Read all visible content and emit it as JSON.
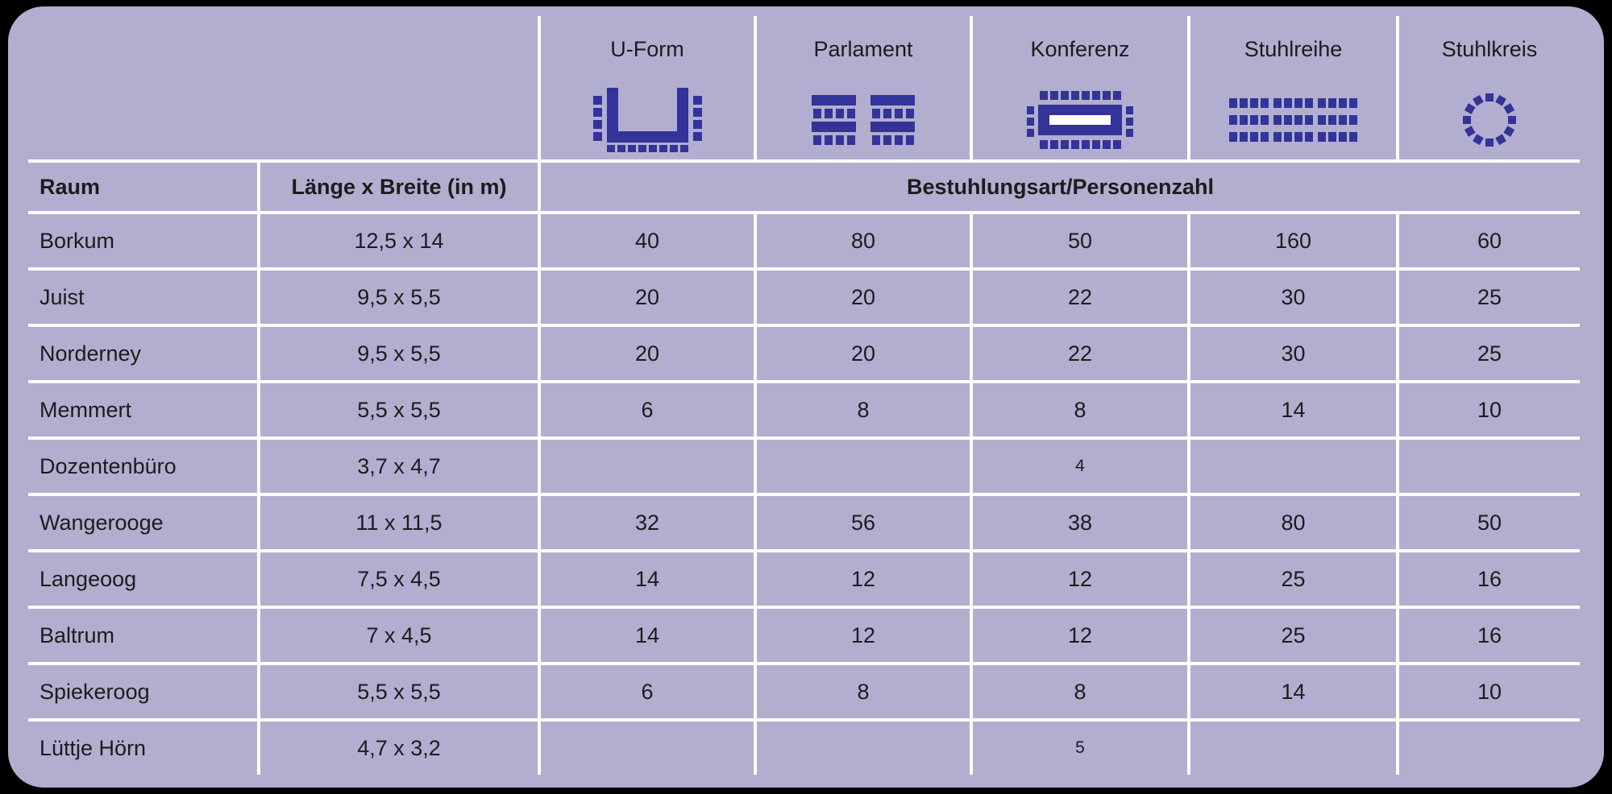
{
  "colors": {
    "panel_bg": "#b1aed0",
    "grid_line": "#ffffff",
    "icon": "#333399",
    "text": "#1c1c1c"
  },
  "columns": {
    "room": "Raum",
    "size": "Länge x Breite (in m)",
    "group_header": "Bestuhlungsart/Personenzahl",
    "seatings": [
      {
        "label": "U-Form",
        "icon": "u-form-icon"
      },
      {
        "label": "Parlament",
        "icon": "parlament-icon"
      },
      {
        "label": "Konferenz",
        "icon": "konferenz-icon"
      },
      {
        "label": "Stuhlreihe",
        "icon": "stuhlreihe-icon"
      },
      {
        "label": "Stuhlkreis",
        "icon": "stuhlkreis-icon"
      }
    ]
  },
  "rows": [
    {
      "name": "Borkum",
      "size": "12,5 x 14",
      "values": [
        "40",
        "80",
        "50",
        "160",
        "60"
      ]
    },
    {
      "name": "Juist",
      "size": "9,5 x 5,5",
      "values": [
        "20",
        "20",
        "22",
        "30",
        "25"
      ]
    },
    {
      "name": "Norderney",
      "size": "9,5 x 5,5",
      "values": [
        "20",
        "20",
        "22",
        "30",
        "25"
      ]
    },
    {
      "name": "Memmert",
      "size": "5,5 x 5,5",
      "values": [
        "6",
        "8",
        "8",
        "14",
        "10"
      ]
    },
    {
      "name": "Dozentenbüro",
      "size": "3,7 x 4,7",
      "values": [
        "",
        "",
        "4",
        "",
        ""
      ],
      "small_values": true
    },
    {
      "name": "Wangerooge",
      "size": "11 x 11,5",
      "values": [
        "32",
        "56",
        "38",
        "80",
        "50"
      ]
    },
    {
      "name": "Langeoog",
      "size": "7,5 x 4,5",
      "values": [
        "14",
        "12",
        "12",
        "25",
        "16"
      ]
    },
    {
      "name": "Baltrum",
      "size": "7 x 4,5",
      "values": [
        "14",
        "12",
        "12",
        "25",
        "16"
      ]
    },
    {
      "name": "Spiekeroog",
      "size": "5,5 x 5,5",
      "values": [
        "6",
        "8",
        "8",
        "14",
        "10"
      ]
    },
    {
      "name": "Lüttje Hörn",
      "size": "4,7 x 3,2",
      "values": [
        "",
        "",
        "5",
        "",
        ""
      ],
      "small_values": true
    }
  ]
}
